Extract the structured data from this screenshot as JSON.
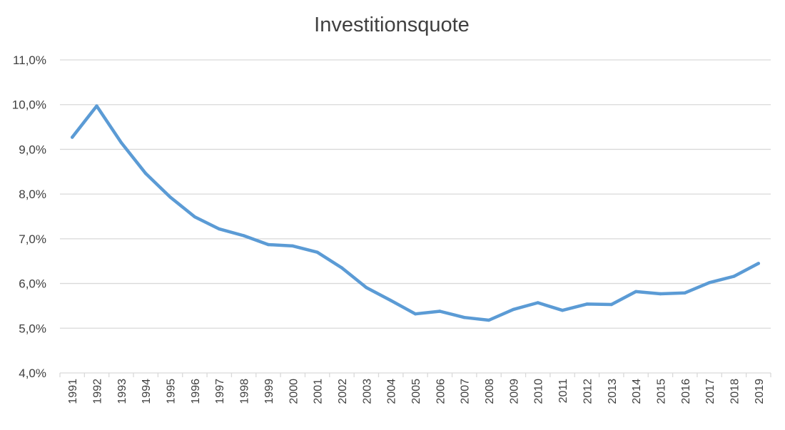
{
  "chart_data": {
    "type": "line",
    "title": "Investitionsquote",
    "xlabel": "",
    "ylabel": "",
    "categories": [
      "1991",
      "1992",
      "1993",
      "1994",
      "1995",
      "1996",
      "1997",
      "1998",
      "1999",
      "2000",
      "2001",
      "2002",
      "2003",
      "2004",
      "2005",
      "2006",
      "2007",
      "2008",
      "2009",
      "2010",
      "2011",
      "2012",
      "2013",
      "2014",
      "2015",
      "2016",
      "2017",
      "2018",
      "2019"
    ],
    "series": [
      {
        "values": [
          9.27,
          9.97,
          9.15,
          8.46,
          7.93,
          7.49,
          7.22,
          7.07,
          6.87,
          6.84,
          6.7,
          6.35,
          5.91,
          5.62,
          5.32,
          5.38,
          5.24,
          5.18,
          5.42,
          5.57,
          5.4,
          5.54,
          5.53,
          5.82,
          5.77,
          5.79,
          6.02,
          6.16,
          6.45
        ]
      }
    ],
    "ylim": [
      4.0,
      11.0
    ],
    "yticks": [
      "4,0%",
      "5,0%",
      "6,0%",
      "7,0%",
      "8,0%",
      "9,0%",
      "10,0%",
      "11,0%"
    ],
    "grid": true,
    "legend": "none",
    "colors": {
      "series": "#5b9bd5",
      "grid": "#d9d9d9",
      "text": "#404040"
    }
  }
}
